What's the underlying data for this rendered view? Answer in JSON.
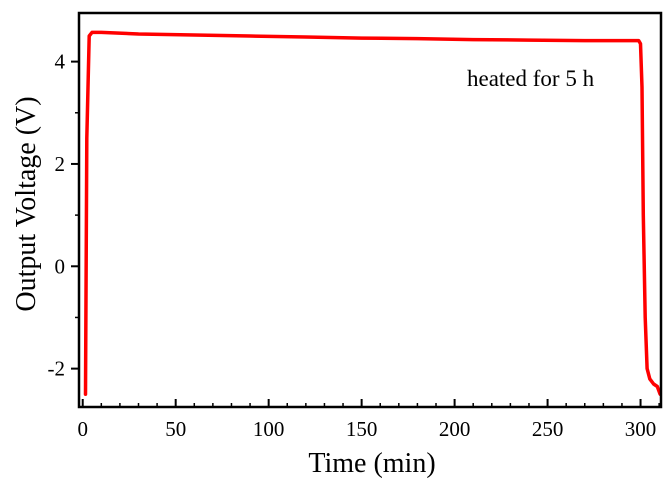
{
  "chart_data": {
    "type": "line",
    "xlabel": "Time (min)",
    "ylabel": "Output Voltage (V)",
    "xlim": [
      -2,
      311
    ],
    "ylim": [
      -2.75,
      4.95
    ],
    "x_ticks": [
      0,
      50,
      100,
      150,
      200,
      250,
      300
    ],
    "y_ticks": [
      -2,
      0,
      2,
      4
    ],
    "x_tick_labels": [
      "0",
      "50",
      "100",
      "150",
      "200",
      "250",
      "300"
    ],
    "y_tick_labels": [
      "-2",
      "0",
      "2",
      "4"
    ],
    "x_minor_step": 10,
    "y_minor_step": 1,
    "grid": false,
    "annotation": "heated for 5 h",
    "series": [
      {
        "color": "#ff0000",
        "x": [
          1.5,
          2.2,
          3.5,
          5,
          10,
          30,
          60,
          90,
          120,
          150,
          180,
          210,
          240,
          270,
          299,
          300,
          300.8,
          301.5,
          302.5,
          303.5,
          305,
          307,
          309,
          310.5
        ],
        "y": [
          -2.5,
          2.5,
          4.5,
          4.57,
          4.57,
          4.54,
          4.52,
          4.5,
          4.48,
          4.46,
          4.45,
          4.43,
          4.42,
          4.41,
          4.41,
          4.35,
          3.5,
          1.0,
          -1.0,
          -2.0,
          -2.2,
          -2.3,
          -2.35,
          -2.5
        ]
      }
    ]
  }
}
